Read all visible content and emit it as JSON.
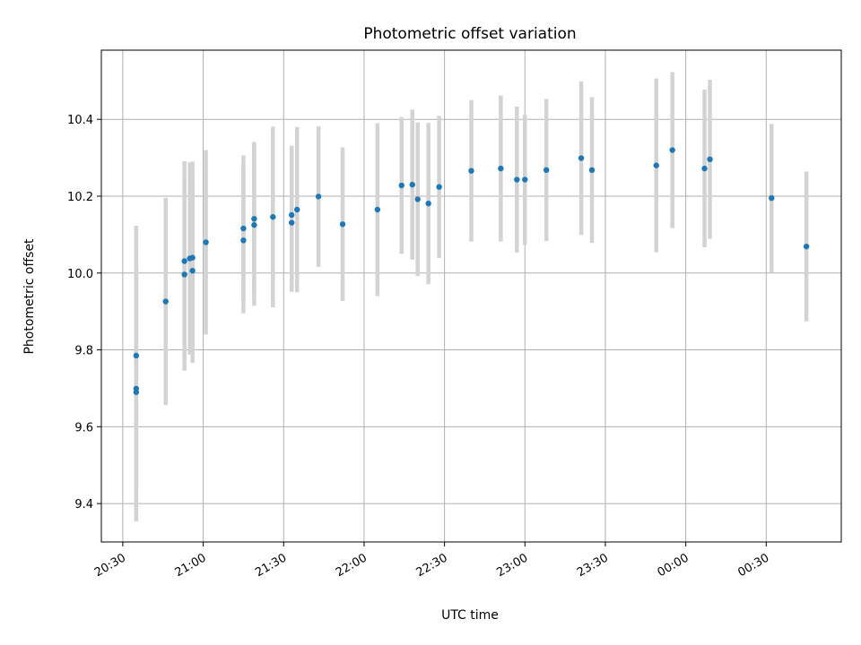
{
  "chart_data": {
    "type": "scatter",
    "title": "Photometric offset variation",
    "xlabel": "UTC time",
    "ylabel": "Photometric offset",
    "x_is_time": true,
    "xlim": [
      "20:22",
      "00:58"
    ],
    "ylim": [
      9.3,
      10.58
    ],
    "grid": true,
    "x_ticks": [
      {
        "t": "20:30",
        "label": "20:30"
      },
      {
        "t": "21:00",
        "label": "21:00"
      },
      {
        "t": "21:30",
        "label": "21:30"
      },
      {
        "t": "22:00",
        "label": "22:00"
      },
      {
        "t": "22:30",
        "label": "22:30"
      },
      {
        "t": "23:00",
        "label": "23:00"
      },
      {
        "t": "23:30",
        "label": "23:30"
      },
      {
        "t": "00:00",
        "label": "00:00"
      },
      {
        "t": "00:30",
        "label": "00:30"
      }
    ],
    "y_ticks": [
      9.4,
      9.6,
      9.8,
      10.0,
      10.2,
      10.4
    ],
    "point_color": "#1f77b4",
    "errorbar_color": "#d3d3d3",
    "points": [
      {
        "t": "20:35",
        "y": 9.785,
        "err": 0.338
      },
      {
        "t": "20:35",
        "y": 9.699,
        "err": 0.345
      },
      {
        "t": "20:35",
        "y": 9.69,
        "err": 0.335
      },
      {
        "t": "20:46",
        "y": 9.926,
        "err": 0.27
      },
      {
        "t": "20:53",
        "y": 10.031,
        "err": 0.26
      },
      {
        "t": "20:53",
        "y": 9.996,
        "err": 0.25
      },
      {
        "t": "20:55",
        "y": 10.038,
        "err": 0.25
      },
      {
        "t": "20:56",
        "y": 10.04,
        "err": 0.25
      },
      {
        "t": "20:56",
        "y": 10.006,
        "err": 0.24
      },
      {
        "t": "21:01",
        "y": 10.08,
        "err": 0.24
      },
      {
        "t": "21:15",
        "y": 10.116,
        "err": 0.19
      },
      {
        "t": "21:15",
        "y": 10.085,
        "err": 0.19
      },
      {
        "t": "21:19",
        "y": 10.141,
        "err": 0.2
      },
      {
        "t": "21:19",
        "y": 10.125,
        "err": 0.21
      },
      {
        "t": "21:26",
        "y": 10.146,
        "err": 0.235
      },
      {
        "t": "21:33",
        "y": 10.151,
        "err": 0.18
      },
      {
        "t": "21:33",
        "y": 10.131,
        "err": 0.18
      },
      {
        "t": "21:35",
        "y": 10.165,
        "err": 0.215
      },
      {
        "t": "21:43",
        "y": 10.199,
        "err": 0.183
      },
      {
        "t": "21:52",
        "y": 10.127,
        "err": 0.2
      },
      {
        "t": "22:05",
        "y": 10.165,
        "err": 0.225
      },
      {
        "t": "22:14",
        "y": 10.228,
        "err": 0.178
      },
      {
        "t": "22:18",
        "y": 10.23,
        "err": 0.195
      },
      {
        "t": "22:20",
        "y": 10.192,
        "err": 0.2
      },
      {
        "t": "22:24",
        "y": 10.181,
        "err": 0.21
      },
      {
        "t": "22:28",
        "y": 10.224,
        "err": 0.185
      },
      {
        "t": "22:40",
        "y": 10.266,
        "err": 0.184
      },
      {
        "t": "22:51",
        "y": 10.272,
        "err": 0.19
      },
      {
        "t": "22:57",
        "y": 10.243,
        "err": 0.19
      },
      {
        "t": "23:00",
        "y": 10.243,
        "err": 0.17
      },
      {
        "t": "23:08",
        "y": 10.268,
        "err": 0.185
      },
      {
        "t": "23:21",
        "y": 10.299,
        "err": 0.2
      },
      {
        "t": "23:25",
        "y": 10.268,
        "err": 0.19
      },
      {
        "t": "23:49",
        "y": 10.28,
        "err": 0.226
      },
      {
        "t": "23:55",
        "y": 10.32,
        "err": 0.203
      },
      {
        "t": "00:07",
        "y": 10.272,
        "err": 0.205
      },
      {
        "t": "00:09",
        "y": 10.296,
        "err": 0.207
      },
      {
        "t": "00:32",
        "y": 10.195,
        "err": 0.193
      },
      {
        "t": "00:45",
        "y": 10.069,
        "err": 0.195
      }
    ]
  }
}
